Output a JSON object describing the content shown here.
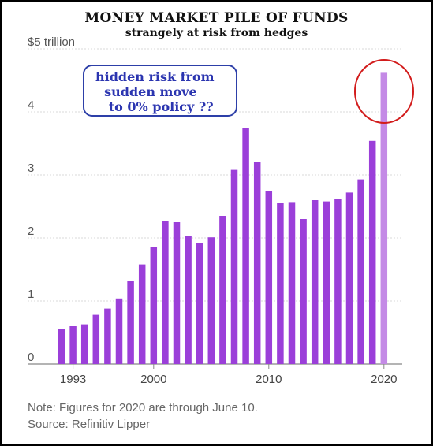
{
  "title": "MONEY MARKET PILE OF FUNDS",
  "subtitle": "strangely at risk from hedges",
  "annotation": {
    "lines": [
      "hidden risk from",
      "  sudden move",
      "   to 0% policy ??"
    ],
    "color": "#2b35b0",
    "highlight_circle_color": "#d21c1c"
  },
  "note": "Note: Figures for 2020 are through June 10.",
  "source": "Source: Refinitiv Lipper",
  "chart_data": {
    "type": "bar",
    "unit_label": "$5 trillion",
    "ylim": [
      0,
      5
    ],
    "yticks": [
      0,
      1,
      2,
      3,
      4,
      5
    ],
    "ytick_labels": [
      "0",
      "1",
      "2",
      "3",
      "4",
      "$5 trillion"
    ],
    "xticks": [
      1993,
      2000,
      2010,
      2020
    ],
    "xtick_labels": [
      "1993",
      "2000",
      "2010",
      "2020"
    ],
    "grid": "horizontal",
    "bar_color": "#9b3fd9",
    "last_bar_color": "#c48ae6",
    "categories": [
      1992,
      1993,
      1994,
      1995,
      1996,
      1997,
      1998,
      1999,
      2000,
      2001,
      2002,
      2003,
      2004,
      2005,
      2006,
      2007,
      2008,
      2009,
      2010,
      2011,
      2012,
      2013,
      2014,
      2015,
      2016,
      2017,
      2018,
      2019,
      2020
    ],
    "values": [
      0.56,
      0.6,
      0.63,
      0.78,
      0.88,
      1.04,
      1.32,
      1.58,
      1.85,
      2.27,
      2.25,
      2.03,
      1.92,
      2.01,
      2.35,
      3.08,
      3.75,
      3.2,
      2.74,
      2.56,
      2.57,
      2.3,
      2.6,
      2.58,
      2.62,
      2.72,
      2.93,
      3.54,
      4.62
    ]
  }
}
